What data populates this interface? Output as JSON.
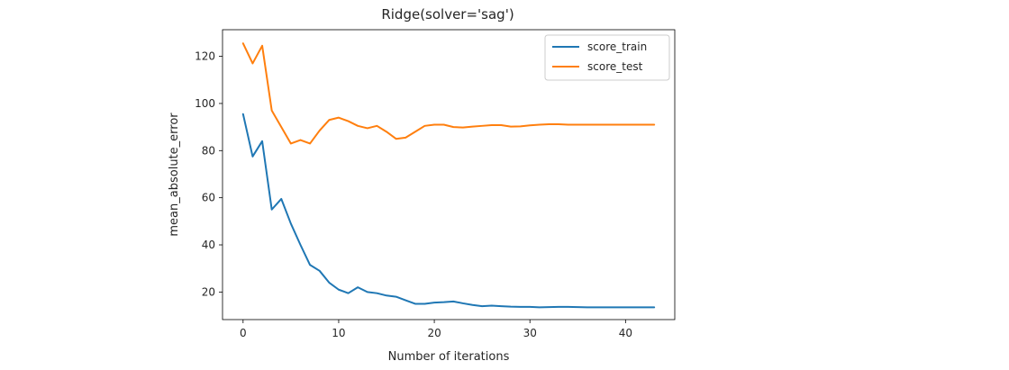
{
  "chart_data": {
    "type": "line",
    "title": "Ridge(solver='sag')",
    "xlabel": "Number of iterations",
    "ylabel": "mean_absolute_error",
    "xlim": [
      -2.15,
      45.15
    ],
    "ylim": [
      8.3,
      131.3
    ],
    "xticks": [
      "0",
      "10",
      "20",
      "30",
      "40"
    ],
    "yticks": [
      "20",
      "40",
      "60",
      "80",
      "100",
      "120"
    ],
    "grid": false,
    "legend_position": "upper right",
    "x": [
      0,
      1,
      2,
      3,
      4,
      5,
      6,
      7,
      8,
      9,
      10,
      11,
      12,
      13,
      14,
      15,
      16,
      17,
      18,
      19,
      20,
      21,
      22,
      23,
      24,
      25,
      26,
      27,
      28,
      29,
      30,
      31,
      32,
      33,
      34,
      35,
      36,
      37,
      38,
      39,
      40,
      41,
      42,
      43
    ],
    "series": [
      {
        "name": "score_train",
        "color": "#1f77b4",
        "values": [
          95.5,
          77.5,
          84,
          55,
          59.5,
          49,
          40,
          31.5,
          29,
          24,
          21,
          19.5,
          22,
          20,
          19.5,
          18.5,
          18,
          16.5,
          15,
          15,
          15.5,
          15.7,
          16,
          15.2,
          14.5,
          14,
          14.2,
          14,
          13.8,
          13.7,
          13.7,
          13.5,
          13.6,
          13.7,
          13.7,
          13.6,
          13.5,
          13.5,
          13.5,
          13.5,
          13.5,
          13.5,
          13.5,
          13.5
        ]
      },
      {
        "name": "score_test",
        "color": "#ff7f0e",
        "values": [
          125.5,
          117,
          124.5,
          97,
          90,
          83,
          84.5,
          83,
          88.5,
          93,
          94,
          92.5,
          90.5,
          89.5,
          90.5,
          88,
          85,
          85.5,
          88,
          90.5,
          91,
          91,
          90,
          89.8,
          90.2,
          90.5,
          90.8,
          90.8,
          90.2,
          90.3,
          90.7,
          91,
          91.2,
          91.2,
          91,
          91,
          91,
          91,
          91,
          91,
          91,
          91,
          91,
          91
        ]
      }
    ]
  }
}
